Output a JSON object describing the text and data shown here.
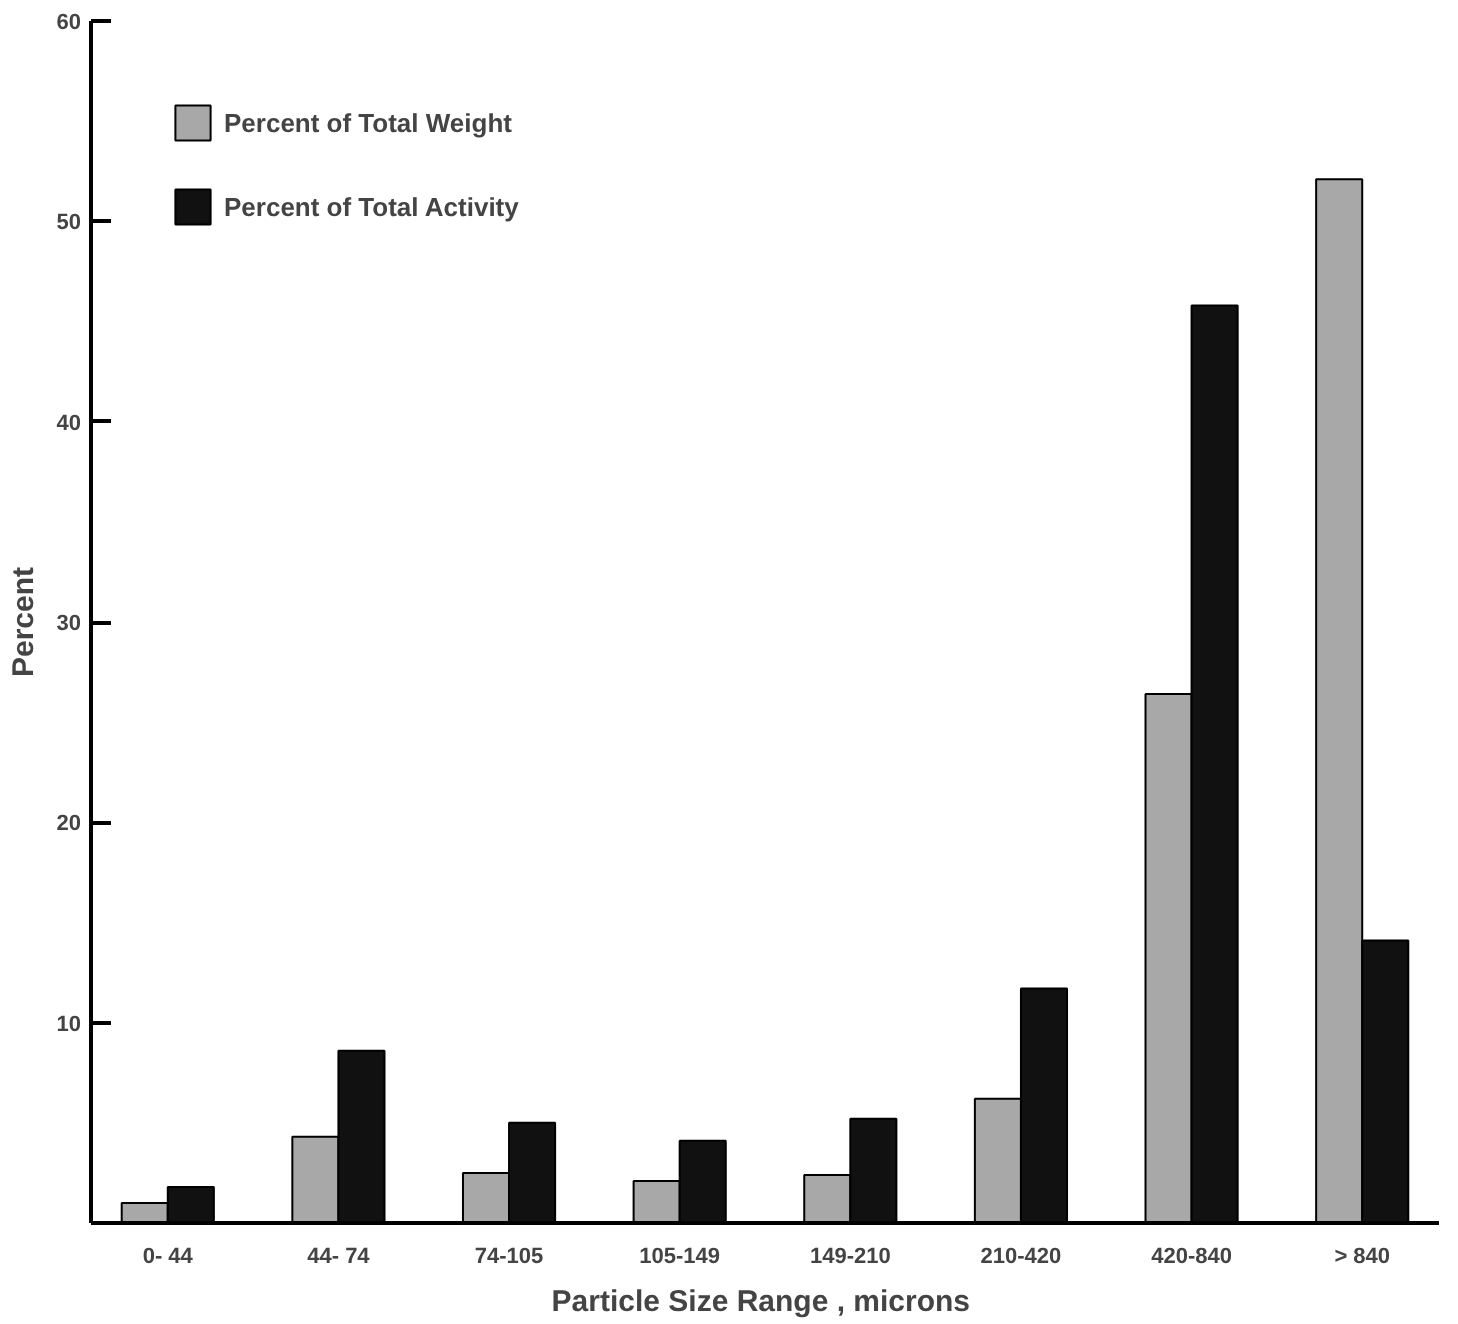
{
  "chart_data": {
    "type": "bar",
    "xlabel": "Particle  Size Range , microns",
    "ylabel": "Percent",
    "categories": [
      "0- 44",
      "44- 74",
      "74-105",
      "105-149",
      "149-210",
      "210-420",
      "420-840",
      "> 840"
    ],
    "series": [
      {
        "name": "Percent of Total Weight",
        "color": "#a8a8a8",
        "values": [
          1.0,
          4.3,
          2.5,
          2.1,
          2.4,
          6.2,
          26.4,
          52.1
        ]
      },
      {
        "name": "Percent of Total Activity",
        "color": "#111111",
        "values": [
          1.8,
          8.6,
          5.0,
          4.1,
          5.2,
          11.7,
          45.8,
          14.1
        ]
      }
    ],
    "ylim": [
      0,
      60
    ],
    "yticks": [
      {
        "value": 0,
        "label": null
      },
      10,
      20,
      30,
      40,
      50,
      60
    ],
    "grid": false,
    "legend": "top left"
  }
}
